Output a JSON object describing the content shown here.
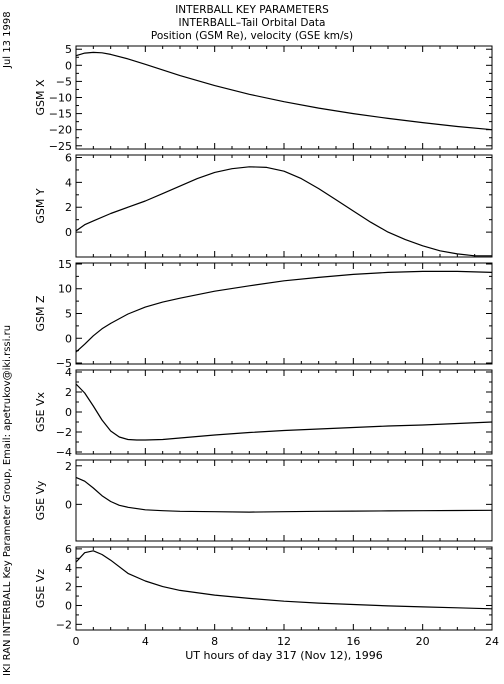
{
  "header": {
    "line1": "INTERBALL KEY PARAMETERS",
    "line2": "INTERBALL–Tail Orbital Data",
    "line3": "Position (GSM Re), velocity (GSE km/s)"
  },
  "side_date": "Jul 13 1998",
  "side_credit": "IKI RAN INTERBALL Key Parameter Group, Email: apetrukov@iki.rssi.ru",
  "chart_data": {
    "type": "line",
    "xlabel": "UT hours of day 317 (Nov 12), 1996",
    "xlim": [
      0,
      24
    ],
    "xticks": [
      0,
      4,
      8,
      12,
      16,
      20,
      24
    ],
    "xtick_labels": [
      "0",
      "4",
      "8",
      "12",
      "16",
      "20",
      "24"
    ],
    "panels": [
      {
        "ylabel": "GSM X",
        "ylim": [
          -26,
          6
        ],
        "yticks": [
          5,
          0,
          -5,
          -10,
          -15,
          -20,
          -25
        ],
        "ytick_labels": [
          "5",
          "0",
          "−5",
          "−10",
          "−15",
          "−20",
          "−25"
        ],
        "x": [
          0,
          0.5,
          1,
          1.5,
          2,
          3,
          4,
          6,
          8,
          10,
          12,
          14,
          16,
          18,
          20,
          22,
          24
        ],
        "y": [
          3,
          3.8,
          4.0,
          3.9,
          3.4,
          2.0,
          0.3,
          -3.2,
          -6.3,
          -9.0,
          -11.3,
          -13.3,
          -15.0,
          -16.5,
          -17.8,
          -19.0,
          -20.0
        ]
      },
      {
        "ylabel": "GSM Y",
        "ylim": [
          -2,
          6.2
        ],
        "yticks": [
          6,
          4,
          2,
          0
        ],
        "ytick_labels": [
          "6",
          "4",
          "2",
          "0"
        ],
        "x": [
          0,
          0.5,
          1,
          2,
          3,
          4,
          5,
          6,
          7,
          8,
          9,
          10,
          11,
          12,
          13,
          14,
          15,
          16,
          17,
          18,
          19,
          20,
          21,
          22,
          23,
          24
        ],
        "y": [
          0.1,
          0.6,
          0.9,
          1.5,
          2.0,
          2.5,
          3.1,
          3.7,
          4.3,
          4.8,
          5.1,
          5.25,
          5.2,
          4.9,
          4.3,
          3.5,
          2.6,
          1.7,
          0.8,
          0.0,
          -0.6,
          -1.1,
          -1.5,
          -1.75,
          -1.9,
          -1.9
        ]
      },
      {
        "ylabel": "GSM Z",
        "ylim": [
          -5.2,
          15.2
        ],
        "yticks": [
          15,
          10,
          5,
          0,
          -5
        ],
        "ytick_labels": [
          "15",
          "10",
          "5",
          "0",
          "−5"
        ],
        "x": [
          0,
          0.5,
          1,
          1.5,
          2,
          3,
          4,
          5,
          6,
          8,
          10,
          12,
          14,
          16,
          18,
          20,
          22,
          24
        ],
        "y": [
          -2.8,
          -1.2,
          0.5,
          1.9,
          3.0,
          4.9,
          6.3,
          7.3,
          8.1,
          9.5,
          10.6,
          11.6,
          12.3,
          12.9,
          13.3,
          13.5,
          13.5,
          13.3
        ]
      },
      {
        "ylabel": "GSE Vx",
        "ylim": [
          -4.2,
          4.2
        ],
        "yticks": [
          4,
          2,
          0,
          -2,
          -4
        ],
        "ytick_labels": [
          "4",
          "2",
          "0",
          "−2",
          "−4"
        ],
        "x": [
          0,
          0.5,
          1,
          1.5,
          2,
          2.5,
          3,
          3.5,
          4,
          5,
          6,
          8,
          10,
          12,
          14,
          16,
          18,
          20,
          22,
          24
        ],
        "y": [
          2.8,
          1.9,
          0.6,
          -0.8,
          -1.9,
          -2.5,
          -2.75,
          -2.8,
          -2.8,
          -2.75,
          -2.6,
          -2.3,
          -2.05,
          -1.85,
          -1.7,
          -1.55,
          -1.4,
          -1.3,
          -1.15,
          -1.0
        ]
      },
      {
        "ylabel": "GSE Vy",
        "ylim": [
          -1.9,
          2.3
        ],
        "yticks": [
          2,
          0
        ],
        "ytick_labels": [
          "2",
          "0"
        ],
        "x": [
          0,
          0.5,
          1,
          1.5,
          2,
          2.5,
          3,
          4,
          5,
          6,
          8,
          10,
          12,
          14,
          16,
          18,
          20,
          22,
          24
        ],
        "y": [
          1.4,
          1.2,
          0.85,
          0.45,
          0.15,
          -0.05,
          -0.15,
          -0.28,
          -0.33,
          -0.36,
          -0.38,
          -0.4,
          -0.38,
          -0.36,
          -0.35,
          -0.34,
          -0.33,
          -0.32,
          -0.31
        ]
      },
      {
        "ylabel": "GSE Vz",
        "ylim": [
          -2.6,
          6.2
        ],
        "yticks": [
          6,
          4,
          2,
          0,
          -2
        ],
        "ytick_labels": [
          "6",
          "4",
          "2",
          "0",
          "−2"
        ],
        "x": [
          0,
          0.5,
          1,
          1.5,
          2,
          3,
          4,
          5,
          6,
          8,
          10,
          12,
          14,
          16,
          18,
          20,
          22,
          24
        ],
        "y": [
          4.6,
          5.6,
          5.8,
          5.4,
          4.8,
          3.4,
          2.6,
          2.0,
          1.6,
          1.1,
          0.75,
          0.45,
          0.25,
          0.1,
          -0.05,
          -0.15,
          -0.25,
          -0.35
        ]
      }
    ]
  }
}
